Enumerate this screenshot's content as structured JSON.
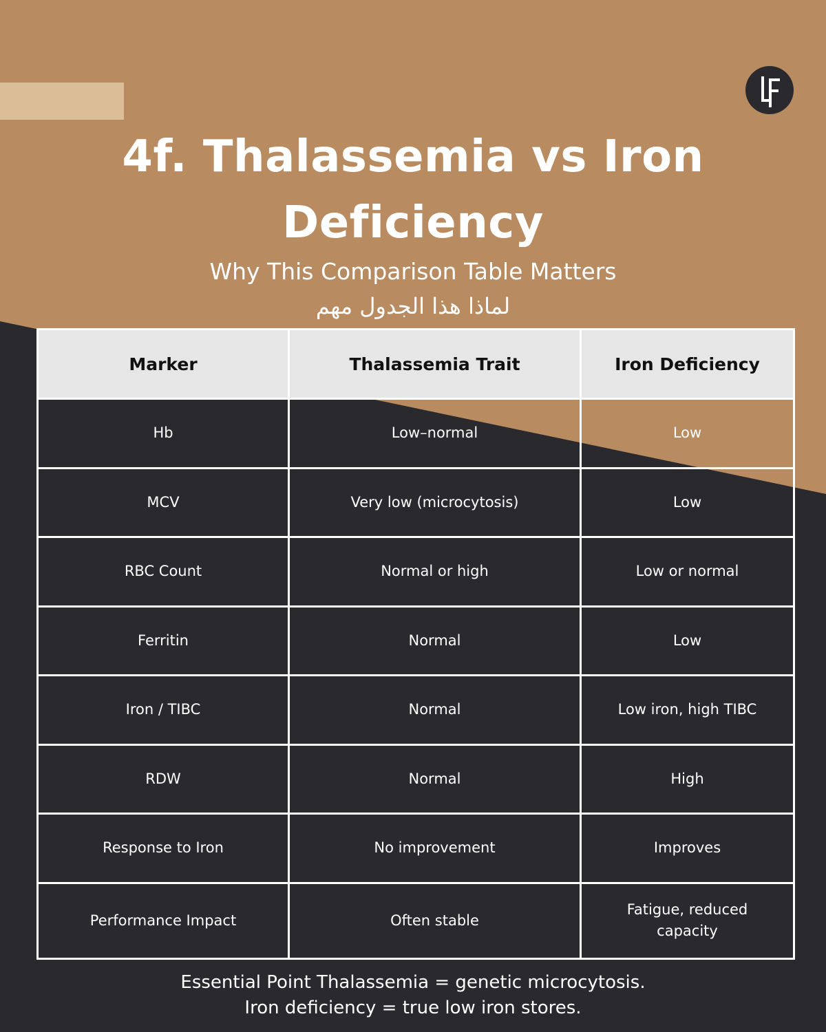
{
  "colors": {
    "tan": "#b88b61",
    "light_tan": "#dbbd98",
    "dark": "#2a2a2e",
    "header_row": "#e6e6e6"
  },
  "logo": {
    "text": "LF"
  },
  "title": {
    "line1": "4f. Thalassemia vs Iron",
    "line2": "Deficiency"
  },
  "subtitle": "Why This Comparison Table Matters",
  "subtitle_ar": "لماذا هذا الجدول مهم",
  "table": {
    "headers": [
      "Marker",
      "Thalassemia Trait",
      "Iron Deficiency"
    ],
    "rows": [
      [
        "Hb",
        "Low–normal",
        "Low"
      ],
      [
        "MCV",
        "Very low (microcytosis)",
        "Low"
      ],
      [
        "RBC Count",
        "Normal or high",
        "Low or normal"
      ],
      [
        "Ferritin",
        "Normal",
        "Low"
      ],
      [
        "Iron / TIBC",
        "Normal",
        "Low iron, high TIBC"
      ],
      [
        "RDW",
        "Normal",
        "High"
      ],
      [
        "Response to Iron",
        "No improvement",
        "Improves"
      ],
      [
        "Performance Impact",
        "Often stable",
        "Fatigue, reduced capacity"
      ]
    ]
  },
  "footer": {
    "line1": "Essential Point Thalassemia = genetic microcytosis.",
    "line2": "Iron deficiency = true low iron stores."
  }
}
